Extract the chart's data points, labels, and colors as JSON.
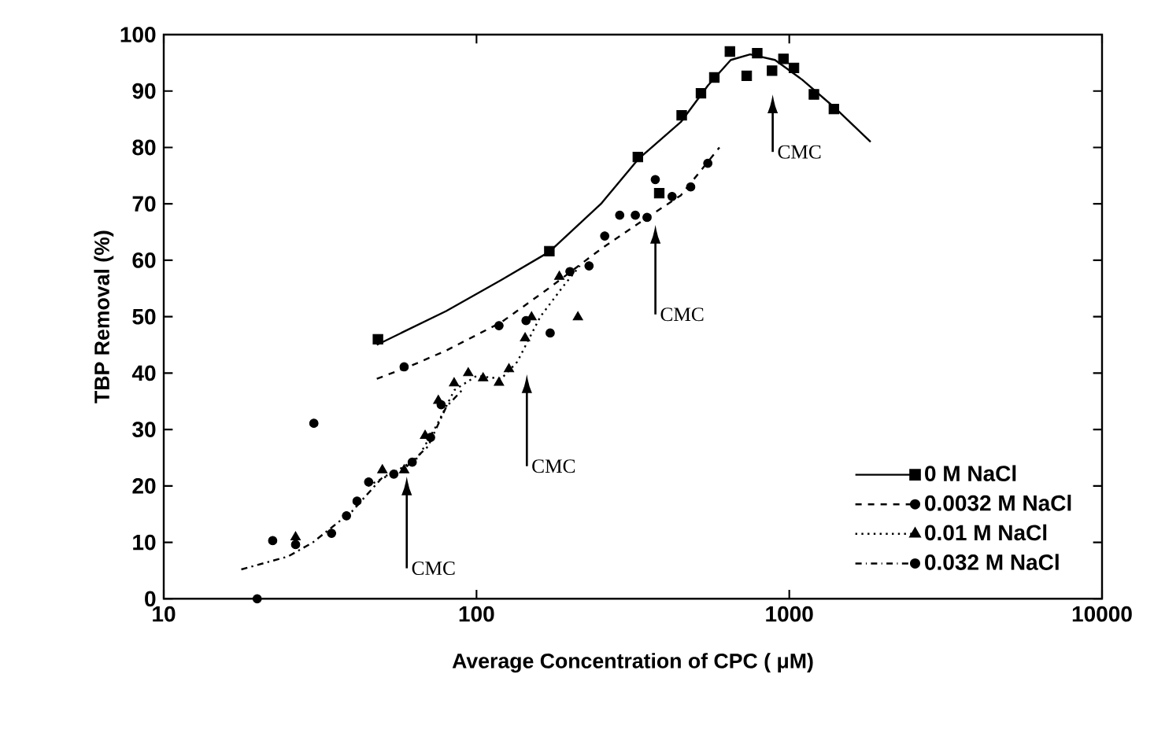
{
  "chart_data": {
    "type": "scatter",
    "xlabel": "Average Concentration of CPC ( μM)",
    "ylabel": "TBP Removal (%)",
    "log": "x",
    "xlim": [
      10,
      10000
    ],
    "xticks": [
      10,
      100,
      1000,
      10000
    ],
    "ylim": [
      0,
      100
    ],
    "yticks": [
      0,
      10,
      20,
      30,
      40,
      50,
      60,
      70,
      80,
      90,
      100
    ],
    "grid": false,
    "legend": "bottom right",
    "series": [
      {
        "name": "0 M NaCl",
        "color": "#000000",
        "marker": "square",
        "x": [
          48.4,
          171,
          328,
          384,
          453,
          522,
          576,
          646,
          731,
          790,
          881,
          958,
          1035,
          1199,
          1389
        ],
        "values": [
          46.0,
          61.6,
          78.3,
          71.9,
          85.7,
          89.6,
          92.4,
          97.0,
          92.7,
          96.7,
          93.6,
          95.7,
          94.1,
          89.4,
          86.8
        ]
      },
      {
        "type": "line",
        "color": "#000000",
        "line_style": "solid",
        "marker": "none",
        "x": [
          48,
          80,
          120,
          171,
          250,
          330,
          450,
          550,
          650,
          750,
          900,
          1100,
          1400,
          1820
        ],
        "values": [
          45,
          51,
          56.5,
          61.5,
          70,
          78,
          84.5,
          91,
          95.5,
          96.5,
          95.5,
          92,
          87,
          81
        ]
      },
      {
        "name": "0.0032 M NaCl",
        "color": "#000000",
        "marker": "circle",
        "x": [
          58.7,
          118,
          199,
          229,
          257,
          287,
          322,
          351,
          373,
          422,
          484,
          549
        ],
        "values": [
          41.1,
          48.4,
          58.0,
          59.0,
          64.3,
          68.0,
          68.0,
          67.6,
          74.3,
          71.3,
          73.0,
          77.2
        ]
      },
      {
        "type": "line",
        "color": "#000000",
        "line_style": "dashed",
        "marker": "none",
        "x": [
          48,
          60,
          80,
          120,
          170,
          250,
          350,
          450,
          598
        ],
        "values": [
          39,
          41,
          44,
          49,
          55,
          62,
          67.5,
          71.5,
          80
        ]
      },
      {
        "name": "0.01 M NaCl",
        "color": "#000000",
        "marker": "triangle",
        "x": [
          26.4,
          50,
          58.7,
          68.5,
          75.5,
          84.8,
          94.1,
          105,
          118,
          127,
          143,
          150,
          184,
          211
        ],
        "values": [
          10.9,
          22.8,
          22.8,
          28.9,
          35.1,
          38.2,
          40.0,
          39.1,
          38.3,
          40.7,
          46.2,
          49.9,
          57.1,
          49.9
        ]
      },
      {
        "type": "line",
        "color": "#000000",
        "line_style": "dotted",
        "marker": "none",
        "x": [
          45,
          55,
          65,
          75,
          85,
          100,
          120,
          135,
          160,
          190,
          214
        ],
        "values": [
          20,
          22.5,
          25,
          31,
          37,
          39.5,
          39,
          42,
          50,
          55.5,
          59
        ]
      },
      {
        "name": "0.032 M NaCl",
        "color": "#000000",
        "marker": "circle",
        "x": [
          19.9,
          22.3,
          26.4,
          30.2,
          34.4,
          38.4,
          41.5,
          45.2,
          54.4,
          62.3,
          71.3,
          77.1,
          144,
          172
        ],
        "values": [
          0,
          10.3,
          9.6,
          31.1,
          11.6,
          14.7,
          17.3,
          20.7,
          22.1,
          24.2,
          28.6,
          34.4,
          49.3,
          47.1
        ]
      },
      {
        "type": "line",
        "color": "#000000",
        "line_style": "dashdot",
        "marker": "none",
        "x": [
          17.7,
          25,
          30,
          40,
          50,
          60,
          70,
          80,
          90
        ],
        "values": [
          5.2,
          7.5,
          10,
          15.5,
          21.5,
          23.5,
          27,
          34,
          37
        ]
      }
    ],
    "annotations": [
      "CMC",
      "CMC",
      "CMC",
      "CMC"
    ]
  }
}
